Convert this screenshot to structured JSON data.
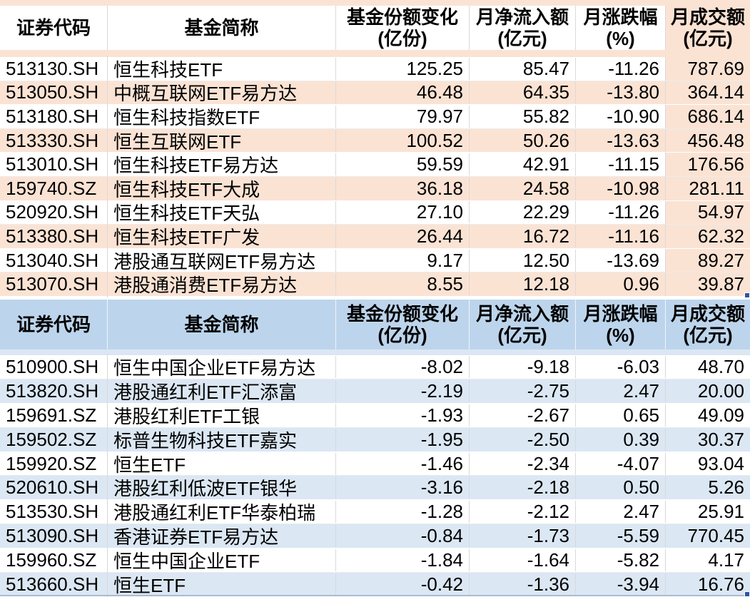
{
  "columns": [
    {
      "id": "code",
      "label": "证券代码",
      "unit": ""
    },
    {
      "id": "name",
      "label": "基金简称",
      "unit": ""
    },
    {
      "id": "share_change",
      "label": "基金份额变化",
      "unit": "(亿份)"
    },
    {
      "id": "net_inflow",
      "label": "月净流入额",
      "unit": "(亿元)"
    },
    {
      "id": "pct_change",
      "label": "月涨跌幅",
      "unit": "(%)"
    },
    {
      "id": "turnover",
      "label": "月成交额",
      "unit": "(亿元)"
    }
  ],
  "inflow_table": {
    "rows": [
      {
        "code": "513130.SH",
        "name": "恒生科技ETF",
        "share_change": "125.25",
        "net_inflow": "85.47",
        "pct_change": "-11.26",
        "turnover": "787.69"
      },
      {
        "code": "513050.SH",
        "name": "中概互联网ETF易方达",
        "share_change": "46.48",
        "net_inflow": "64.35",
        "pct_change": "-13.80",
        "turnover": "364.14"
      },
      {
        "code": "513180.SH",
        "name": "恒生科技指数ETF",
        "share_change": "79.97",
        "net_inflow": "55.82",
        "pct_change": "-10.90",
        "turnover": "686.14"
      },
      {
        "code": "513330.SH",
        "name": "恒生互联网ETF",
        "share_change": "100.52",
        "net_inflow": "50.26",
        "pct_change": "-13.63",
        "turnover": "456.48"
      },
      {
        "code": "513010.SH",
        "name": "恒生科技ETF易方达",
        "share_change": "59.59",
        "net_inflow": "42.91",
        "pct_change": "-11.15",
        "turnover": "176.56"
      },
      {
        "code": "159740.SZ",
        "name": "恒生科技ETF大成",
        "share_change": "36.18",
        "net_inflow": "24.58",
        "pct_change": "-10.98",
        "turnover": "281.11"
      },
      {
        "code": "520920.SH",
        "name": "恒生科技ETF天弘",
        "share_change": "27.10",
        "net_inflow": "22.29",
        "pct_change": "-11.26",
        "turnover": "54.97"
      },
      {
        "code": "513380.SH",
        "name": "恒生科技ETF广发",
        "share_change": "26.44",
        "net_inflow": "16.72",
        "pct_change": "-11.16",
        "turnover": "62.32"
      },
      {
        "code": "513040.SH",
        "name": "港股通互联网ETF易方达",
        "share_change": "9.17",
        "net_inflow": "12.50",
        "pct_change": "-13.69",
        "turnover": "89.27"
      },
      {
        "code": "513070.SH",
        "name": "港股通消费ETF易方达",
        "share_change": "8.55",
        "net_inflow": "12.18",
        "pct_change": "0.96",
        "turnover": "39.87"
      }
    ]
  },
  "outflow_table": {
    "rows": [
      {
        "code": "510900.SH",
        "name": "恒生中国企业ETF易方达",
        "share_change": "-8.02",
        "net_inflow": "-9.18",
        "pct_change": "-6.03",
        "turnover": "48.70"
      },
      {
        "code": "513820.SH",
        "name": "港股通红利ETF汇添富",
        "share_change": "-2.19",
        "net_inflow": "-2.75",
        "pct_change": "2.47",
        "turnover": "20.00"
      },
      {
        "code": "159691.SZ",
        "name": "港股红利ETF工银",
        "share_change": "-1.93",
        "net_inflow": "-2.67",
        "pct_change": "0.65",
        "turnover": "49.09"
      },
      {
        "code": "159502.SZ",
        "name": "标普生物科技ETF嘉实",
        "share_change": "-1.95",
        "net_inflow": "-2.50",
        "pct_change": "0.39",
        "turnover": "30.37"
      },
      {
        "code": "159920.SZ",
        "name": "恒生ETF",
        "share_change": "-1.46",
        "net_inflow": "-2.34",
        "pct_change": "-4.07",
        "turnover": "93.04"
      },
      {
        "code": "520610.SH",
        "name": "港股红利低波ETF银华",
        "share_change": "-3.16",
        "net_inflow": "-2.18",
        "pct_change": "0.50",
        "turnover": "5.26"
      },
      {
        "code": "513530.SH",
        "name": "港股通红利ETF华泰柏瑞",
        "share_change": "-1.28",
        "net_inflow": "-2.12",
        "pct_change": "2.47",
        "turnover": "25.91"
      },
      {
        "code": "513090.SH",
        "name": "香港证券ETF易方达",
        "share_change": "-0.84",
        "net_inflow": "-1.73",
        "pct_change": "-5.59",
        "turnover": "770.45"
      },
      {
        "code": "159960.SZ",
        "name": "恒生中国企业ETF",
        "share_change": "-1.84",
        "net_inflow": "-1.64",
        "pct_change": "-5.82",
        "turnover": "4.17"
      },
      {
        "code": "513660.SH",
        "name": "恒生ETF",
        "share_change": "-0.42",
        "net_inflow": "-1.36",
        "pct_change": "-3.94",
        "turnover": "16.76"
      }
    ]
  },
  "colors": {
    "peach": "#fbe3d4",
    "blue_header": "#bdd5ec",
    "blue_row": "#dbe7f3",
    "fill_handle": "#2f549e",
    "bottom_edge": "#a9bad2",
    "gridline": "#d9d9d9"
  }
}
